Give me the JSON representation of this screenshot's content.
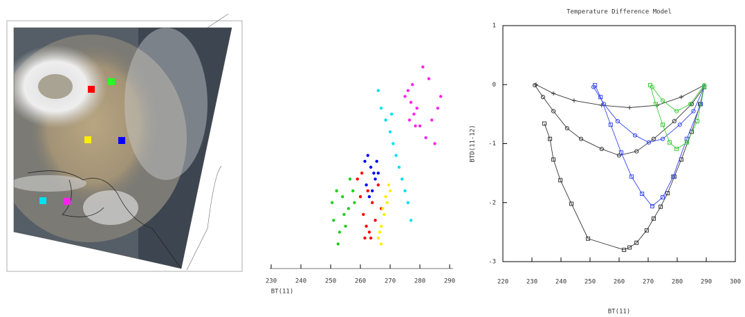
{
  "chart_data": [
    {
      "type": "scatter",
      "xlabel": "BT(11)",
      "xlim": [
        230,
        290
      ],
      "xticks": [
        230,
        240,
        250,
        260,
        270,
        280,
        290
      ],
      "ylim": [
        -3,
        1
      ],
      "frame": false,
      "series": [
        {
          "color": "#22cc22",
          "x": [
            250.5,
            252,
            254,
            256,
            257.5,
            251,
            253,
            255,
            258,
            252.5,
            254.5,
            256.5
          ],
          "values": [
            -2.0,
            -1.8,
            -1.9,
            -2.1,
            -1.8,
            -2.3,
            -2.5,
            -2.4,
            -2.0,
            -2.7,
            -2.2,
            -1.6
          ]
        },
        {
          "color": "#ff0000",
          "x": [
            259,
            260,
            261,
            262,
            263,
            264,
            265,
            266,
            261.5,
            263.5,
            267,
            260.5,
            262.5
          ],
          "values": [
            -1.6,
            -1.9,
            -2.2,
            -2.4,
            -2.5,
            -2.0,
            -2.3,
            -1.7,
            -2.6,
            -2.6,
            -2.1,
            -1.5,
            -1.8
          ]
        },
        {
          "color": "#0000ff",
          "x": [
            261.5,
            262.5,
            263.5,
            264.5,
            265.5,
            262,
            263,
            264,
            265,
            266
          ],
          "values": [
            -1.3,
            -1.2,
            -1.4,
            -1.5,
            -1.3,
            -1.7,
            -1.9,
            -1.8,
            -1.6,
            -1.5
          ]
        },
        {
          "color": "#ffee00",
          "x": [
            266,
            267,
            268,
            269,
            270,
            266.5,
            267.5,
            268.5,
            269.5,
            267
          ],
          "values": [
            -2.6,
            -2.4,
            -2.2,
            -2.0,
            -1.8,
            -2.5,
            -2.1,
            -1.9,
            -1.7,
            -2.7
          ]
        },
        {
          "color": "#00e0f0",
          "x": [
            267,
            268.5,
            270,
            271,
            272,
            273,
            274,
            275,
            276,
            277,
            266,
            270.5
          ],
          "values": [
            -0.4,
            -0.6,
            -0.8,
            -1.0,
            -1.2,
            -1.4,
            -1.6,
            -1.8,
            -2.0,
            -2.3,
            -0.1,
            -0.5
          ]
        },
        {
          "color": "#ff22ee",
          "x": [
            275,
            276,
            277,
            278,
            279,
            276.5,
            277.5,
            280,
            282,
            284,
            286,
            281,
            283,
            285,
            287,
            278.5
          ],
          "values": [
            -0.2,
            -0.1,
            -0.3,
            -0.5,
            -0.4,
            -0.6,
            0.0,
            -0.7,
            -0.9,
            -0.6,
            -0.4,
            0.3,
            0.1,
            -1.0,
            -0.2,
            -0.7
          ]
        }
      ]
    },
    {
      "type": "line",
      "title": "Temperature Difference Model",
      "xlabel": "BT(11)",
      "ylabel": "BTD(11-12)",
      "xlim": [
        220,
        300
      ],
      "xticks": [
        220,
        230,
        240,
        250,
        260,
        270,
        280,
        290,
        300
      ],
      "ylim": [
        -3,
        1
      ],
      "yticks": [
        1,
        0,
        -1,
        -2,
        -3
      ],
      "frame": true,
      "series": [
        {
          "color": "#333333",
          "marker": "square",
          "x": [
            234.3,
            236.2,
            237.4,
            239.8,
            243.6,
            249.3,
            261.7,
            263.6,
            266,
            269.5,
            271.9,
            274.3,
            276.7,
            279,
            281.4,
            285,
            287.9,
            289.3
          ],
          "values": [
            -0.66,
            -0.92,
            -1.27,
            -1.62,
            -2.02,
            -2.61,
            -2.8,
            -2.76,
            -2.68,
            -2.47,
            -2.27,
            -2.07,
            -1.84,
            -1.56,
            -1.27,
            -0.8,
            -0.33,
            -0.04
          ]
        },
        {
          "color": "#333333",
          "marker": "circle",
          "x": [
            231,
            233.8,
            237.4,
            242.1,
            246.9,
            254,
            260,
            266,
            271.9,
            279,
            285,
            289.3
          ],
          "values": [
            -0.01,
            -0.21,
            -0.45,
            -0.74,
            -0.92,
            -1.09,
            -1.2,
            -1.13,
            -0.92,
            -0.62,
            -0.33,
            -0.04
          ]
        },
        {
          "color": "#333333",
          "marker": "plus",
          "x": [
            231.4,
            237.4,
            244.5,
            254,
            263.6,
            273.1,
            281.4,
            289.3
          ],
          "values": [
            0,
            -0.15,
            -0.27,
            -0.35,
            -0.39,
            -0.35,
            -0.21,
            -0.01
          ]
        },
        {
          "color": "#3344ee",
          "marker": "square",
          "x": [
            251.7,
            253.6,
            257.1,
            260.7,
            264.3,
            267.9,
            271.4,
            275,
            278.6,
            283.3,
            288.1,
            289.3
          ],
          "values": [
            -0.01,
            -0.21,
            -0.68,
            -1.15,
            -1.56,
            -1.85,
            -2.06,
            -1.91,
            -1.56,
            -0.92,
            -0.33,
            -0.04
          ]
        },
        {
          "color": "#3344ee",
          "marker": "circle",
          "x": [
            251.2,
            254.8,
            259.5,
            265.5,
            270.2,
            275,
            280.9,
            285.6,
            289.3
          ],
          "values": [
            -0.04,
            -0.33,
            -0.62,
            -0.86,
            -0.98,
            -0.92,
            -0.68,
            -0.45,
            -0.04
          ]
        },
        {
          "color": "#33cc33",
          "marker": "square",
          "x": [
            270.7,
            272.6,
            275,
            277.4,
            279.8,
            283.3,
            286.9,
            289.3
          ],
          "values": [
            -0.01,
            -0.33,
            -0.68,
            -0.98,
            -1.09,
            -0.98,
            -0.62,
            -0.04
          ]
        },
        {
          "color": "#33cc33",
          "marker": "circle",
          "x": [
            271.4,
            275,
            279.8,
            284.5,
            289.3
          ],
          "values": [
            -0.04,
            -0.27,
            -0.45,
            -0.33,
            -0.01
          ]
        }
      ]
    }
  ]
}
